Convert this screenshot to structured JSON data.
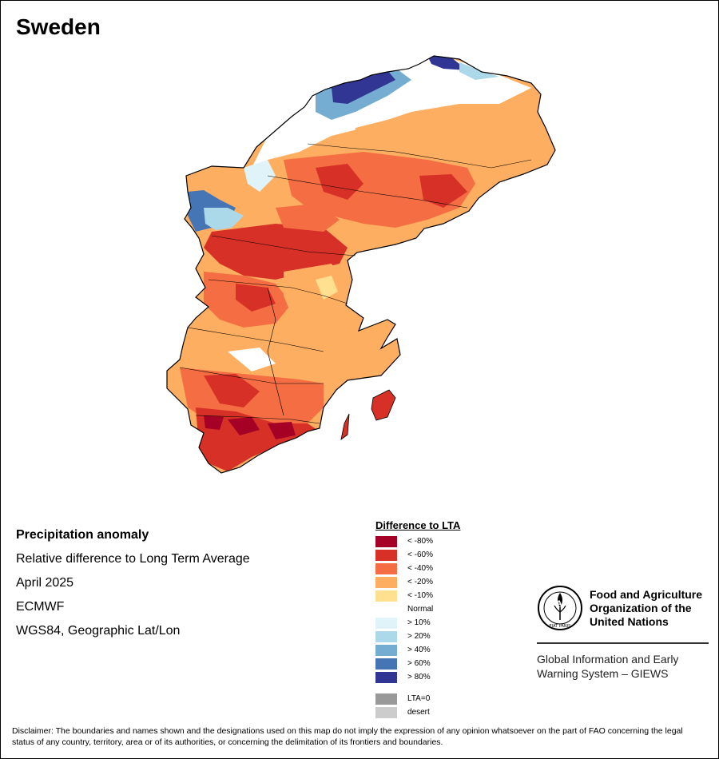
{
  "title": "Sweden",
  "info": {
    "heading": "Precipitation anomaly",
    "subtitle": "Relative difference to Long Term Average",
    "date": "April 2025",
    "source": "ECMWF",
    "projection": "WGS84, Geographic Lat/Lon"
  },
  "legend": {
    "title": "Difference to LTA",
    "items": [
      {
        "label": "< -80%",
        "color": "#a50026"
      },
      {
        "label": "< -60%",
        "color": "#d73027"
      },
      {
        "label": "< -40%",
        "color": "#f46d43"
      },
      {
        "label": "< -20%",
        "color": "#fdae61"
      },
      {
        "label": "< -10%",
        "color": "#fee090"
      },
      {
        "label": "Normal",
        "color": "#ffffff"
      },
      {
        "label": "> 10%",
        "color": "#e0f3f8"
      },
      {
        "label": "> 20%",
        "color": "#abd9e9"
      },
      {
        "label": "> 40%",
        "color": "#74add1"
      },
      {
        "label": "> 60%",
        "color": "#4575b4"
      },
      {
        "label": "> 80%",
        "color": "#313695"
      }
    ],
    "extra": [
      {
        "label": "LTA=0",
        "color": "#999999"
      },
      {
        "label": "desert",
        "color": "#cccccc"
      }
    ]
  },
  "org": {
    "name_line1": "Food and Agriculture",
    "name_line2": "Organization of the",
    "name_line3": "United Nations",
    "logo_text": "FAO",
    "logo_motto": "FIAT PANIS",
    "system_line1": "Global Information and Early",
    "system_line2": "Warning System – GIEWS"
  },
  "disclaimer": "Disclaimer: The boundaries and names shown and the designations used on this map do not imply the expression of any opinion whatsoever on the part of FAO concerning the legal status of any country, territory, area or of its authorities, or concerning the delimitation of its frontiers and boundaries."
}
